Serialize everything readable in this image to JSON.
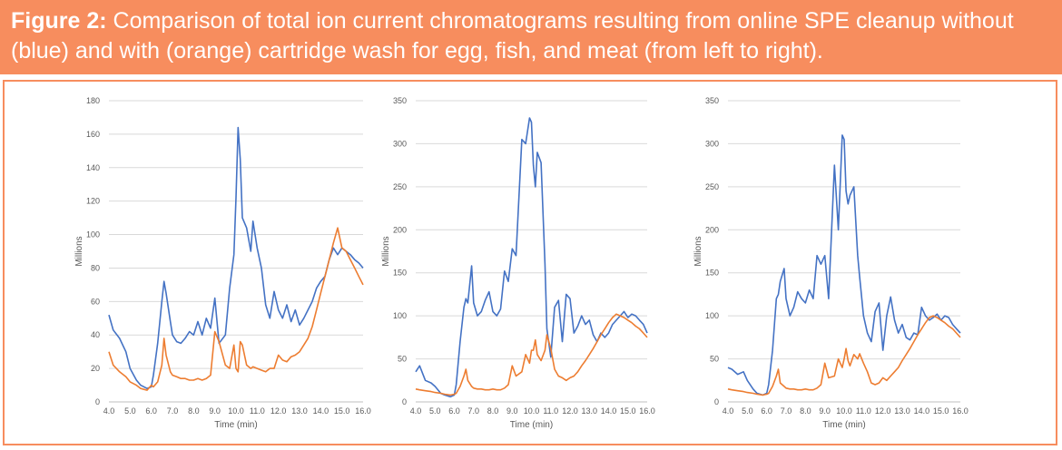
{
  "figure": {
    "label": "Figure 2:",
    "text": " Comparison of total ion current chromatograms resulting from online SPE cleanup without (blue) and with (orange) cartridge wash for egg, fish, and meat (from left to right).",
    "accent_color": "#f78d5e"
  },
  "chart_data": [
    {
      "type": "line",
      "title": "egg",
      "xlabel": "Time (min)",
      "ylabel": "Millions",
      "xlim": [
        4.0,
        16.0
      ],
      "ylim": [
        0,
        180
      ],
      "xticks": [
        "4.0",
        "5.0",
        "6.0",
        "7.0",
        "8.0",
        "9.0",
        "10.0",
        "11.0",
        "12.0",
        "13.0",
        "14.0",
        "15.0",
        "16.0"
      ],
      "yticks": [
        0,
        20,
        40,
        60,
        80,
        100,
        120,
        140,
        160,
        180
      ],
      "series": [
        {
          "name": "without cartridge wash",
          "color": "#4472c4",
          "x": [
            4.0,
            4.2,
            4.5,
            4.8,
            5.0,
            5.3,
            5.5,
            5.8,
            6.0,
            6.1,
            6.3,
            6.5,
            6.6,
            6.7,
            6.9,
            7.0,
            7.2,
            7.4,
            7.6,
            7.8,
            8.0,
            8.2,
            8.4,
            8.6,
            8.8,
            9.0,
            9.2,
            9.5,
            9.7,
            9.9,
            10.0,
            10.1,
            10.2,
            10.3,
            10.5,
            10.7,
            10.8,
            11.0,
            11.2,
            11.4,
            11.6,
            11.8,
            12.0,
            12.2,
            12.4,
            12.6,
            12.8,
            13.0,
            13.2,
            13.4,
            13.6,
            13.8,
            14.0,
            14.2,
            14.4,
            14.6,
            14.8,
            15.0,
            15.2,
            15.4,
            15.6,
            15.8,
            16.0
          ],
          "y": [
            52,
            43,
            38,
            30,
            20,
            13,
            10,
            8,
            9,
            16,
            35,
            60,
            72,
            65,
            48,
            40,
            36,
            35,
            38,
            42,
            40,
            48,
            40,
            50,
            44,
            62,
            35,
            40,
            68,
            88,
            122,
            164,
            145,
            110,
            104,
            90,
            108,
            92,
            80,
            58,
            50,
            66,
            55,
            50,
            58,
            48,
            55,
            46,
            50,
            55,
            60,
            68,
            72,
            75,
            85,
            92,
            88,
            92,
            90,
            88,
            85,
            83,
            80
          ]
        },
        {
          "name": "with cartridge wash",
          "color": "#ed7d31",
          "x": [
            4.0,
            4.2,
            4.5,
            4.8,
            5.0,
            5.3,
            5.5,
            5.8,
            6.0,
            6.1,
            6.3,
            6.5,
            6.6,
            6.7,
            6.9,
            7.0,
            7.2,
            7.4,
            7.6,
            7.8,
            8.0,
            8.2,
            8.4,
            8.6,
            8.8,
            9.0,
            9.2,
            9.5,
            9.7,
            9.9,
            10.0,
            10.1,
            10.2,
            10.3,
            10.5,
            10.7,
            10.8,
            11.0,
            11.2,
            11.4,
            11.6,
            11.8,
            12.0,
            12.2,
            12.4,
            12.6,
            12.8,
            13.0,
            13.2,
            13.4,
            13.6,
            13.8,
            14.0,
            14.2,
            14.4,
            14.6,
            14.8,
            15.0,
            15.2,
            15.4,
            15.6,
            15.8,
            16.0
          ],
          "y": [
            30,
            22,
            18,
            15,
            12,
            10,
            8,
            7,
            10,
            9,
            12,
            22,
            38,
            28,
            18,
            16,
            15,
            14,
            14,
            13,
            13,
            14,
            13,
            14,
            16,
            42,
            36,
            22,
            20,
            34,
            20,
            18,
            36,
            34,
            22,
            20,
            21,
            20,
            19,
            18,
            20,
            20,
            28,
            25,
            24,
            27,
            28,
            30,
            34,
            38,
            45,
            55,
            65,
            75,
            85,
            95,
            104,
            92,
            90,
            85,
            80,
            75,
            70
          ]
        }
      ]
    },
    {
      "type": "line",
      "title": "fish",
      "xlabel": "Time (min)",
      "ylabel": "Millions",
      "xlim": [
        4.0,
        16.0
      ],
      "ylim": [
        0,
        350
      ],
      "xticks": [
        "4.0",
        "5.0",
        "6.0",
        "7.0",
        "8.0",
        "9.0",
        "10.0",
        "11.0",
        "12.0",
        "13.0",
        "14.0",
        "15.0",
        "16.0"
      ],
      "yticks": [
        0,
        50,
        100,
        150,
        200,
        250,
        300,
        350
      ],
      "series": [
        {
          "name": "without cartridge wash",
          "color": "#4472c4",
          "x": [
            4.0,
            4.2,
            4.5,
            4.8,
            5.0,
            5.3,
            5.5,
            5.8,
            6.0,
            6.1,
            6.3,
            6.5,
            6.6,
            6.7,
            6.9,
            7.0,
            7.2,
            7.4,
            7.6,
            7.8,
            8.0,
            8.2,
            8.4,
            8.6,
            8.8,
            9.0,
            9.2,
            9.5,
            9.7,
            9.9,
            10.0,
            10.1,
            10.2,
            10.3,
            10.5,
            10.7,
            10.8,
            11.0,
            11.2,
            11.4,
            11.6,
            11.8,
            12.0,
            12.2,
            12.4,
            12.6,
            12.8,
            13.0,
            13.2,
            13.4,
            13.6,
            13.8,
            14.0,
            14.2,
            14.4,
            14.6,
            14.8,
            15.0,
            15.2,
            15.4,
            15.6,
            15.8,
            16.0
          ],
          "y": [
            35,
            42,
            25,
            22,
            18,
            10,
            8,
            6,
            8,
            20,
            70,
            110,
            120,
            115,
            158,
            115,
            100,
            105,
            118,
            128,
            105,
            100,
            108,
            152,
            140,
            178,
            170,
            305,
            300,
            330,
            325,
            275,
            250,
            290,
            278,
            160,
            85,
            52,
            110,
            118,
            70,
            125,
            120,
            80,
            88,
            100,
            90,
            95,
            78,
            70,
            80,
            75,
            80,
            90,
            95,
            100,
            105,
            98,
            102,
            100,
            95,
            90,
            80
          ]
        },
        {
          "name": "with cartridge wash",
          "color": "#ed7d31",
          "x": [
            4.0,
            4.2,
            4.5,
            4.8,
            5.0,
            5.3,
            5.5,
            5.8,
            6.0,
            6.1,
            6.3,
            6.5,
            6.6,
            6.7,
            6.9,
            7.0,
            7.2,
            7.4,
            7.6,
            7.8,
            8.0,
            8.2,
            8.4,
            8.6,
            8.8,
            9.0,
            9.2,
            9.5,
            9.7,
            9.9,
            10.0,
            10.1,
            10.2,
            10.3,
            10.5,
            10.7,
            10.8,
            11.0,
            11.2,
            11.4,
            11.6,
            11.8,
            12.0,
            12.2,
            12.4,
            12.6,
            12.8,
            13.0,
            13.2,
            13.4,
            13.6,
            13.8,
            14.0,
            14.2,
            14.4,
            14.6,
            14.8,
            15.0,
            15.2,
            15.4,
            15.6,
            15.8,
            16.0
          ],
          "y": [
            15,
            14,
            13,
            12,
            11,
            10,
            9,
            8,
            9,
            10,
            18,
            30,
            38,
            25,
            18,
            16,
            15,
            15,
            14,
            14,
            15,
            14,
            14,
            16,
            20,
            42,
            30,
            35,
            55,
            45,
            60,
            60,
            72,
            55,
            48,
            60,
            78,
            62,
            38,
            30,
            28,
            25,
            28,
            30,
            35,
            42,
            48,
            55,
            62,
            70,
            78,
            85,
            92,
            98,
            102,
            100,
            98,
            95,
            92,
            88,
            85,
            80,
            75
          ]
        }
      ]
    },
    {
      "type": "line",
      "title": "meat",
      "xlabel": "Time (min)",
      "ylabel": "Millions",
      "xlim": [
        4.0,
        16.0
      ],
      "ylim": [
        0,
        350
      ],
      "xticks": [
        "4.0",
        "5.0",
        "6.0",
        "7.0",
        "8.0",
        "9.0",
        "10.0",
        "11.0",
        "12.0",
        "13.0",
        "14.0",
        "15.0",
        "16.0"
      ],
      "yticks": [
        0,
        50,
        100,
        150,
        200,
        250,
        300,
        350
      ],
      "series": [
        {
          "name": "without cartridge wash",
          "color": "#4472c4",
          "x": [
            4.0,
            4.2,
            4.5,
            4.8,
            5.0,
            5.3,
            5.5,
            5.8,
            6.0,
            6.1,
            6.3,
            6.5,
            6.6,
            6.7,
            6.9,
            7.0,
            7.2,
            7.4,
            7.6,
            7.8,
            8.0,
            8.2,
            8.4,
            8.6,
            8.8,
            9.0,
            9.2,
            9.5,
            9.7,
            9.9,
            10.0,
            10.1,
            10.2,
            10.3,
            10.5,
            10.7,
            10.8,
            11.0,
            11.2,
            11.4,
            11.6,
            11.8,
            12.0,
            12.2,
            12.4,
            12.6,
            12.8,
            13.0,
            13.2,
            13.4,
            13.6,
            13.8,
            14.0,
            14.2,
            14.4,
            14.6,
            14.8,
            15.0,
            15.2,
            15.4,
            15.6,
            15.8,
            16.0
          ],
          "y": [
            40,
            38,
            32,
            35,
            25,
            15,
            10,
            8,
            10,
            20,
            60,
            120,
            125,
            140,
            155,
            120,
            100,
            110,
            128,
            120,
            115,
            130,
            120,
            170,
            160,
            170,
            120,
            275,
            200,
            310,
            305,
            245,
            230,
            240,
            250,
            170,
            145,
            100,
            80,
            70,
            105,
            115,
            60,
            100,
            122,
            95,
            80,
            90,
            75,
            72,
            80,
            78,
            110,
            100,
            95,
            98,
            102,
            95,
            100,
            98,
            90,
            85,
            80
          ]
        },
        {
          "name": "with cartridge wash",
          "color": "#ed7d31",
          "x": [
            4.0,
            4.2,
            4.5,
            4.8,
            5.0,
            5.3,
            5.5,
            5.8,
            6.0,
            6.1,
            6.3,
            6.5,
            6.6,
            6.7,
            6.9,
            7.0,
            7.2,
            7.4,
            7.6,
            7.8,
            8.0,
            8.2,
            8.4,
            8.6,
            8.8,
            9.0,
            9.2,
            9.5,
            9.7,
            9.9,
            10.0,
            10.1,
            10.2,
            10.3,
            10.5,
            10.7,
            10.8,
            11.0,
            11.2,
            11.4,
            11.6,
            11.8,
            12.0,
            12.2,
            12.4,
            12.6,
            12.8,
            13.0,
            13.2,
            13.4,
            13.6,
            13.8,
            14.0,
            14.2,
            14.4,
            14.6,
            14.8,
            15.0,
            15.2,
            15.4,
            15.6,
            15.8,
            16.0
          ],
          "y": [
            15,
            14,
            13,
            12,
            11,
            10,
            9,
            8,
            9,
            10,
            18,
            30,
            38,
            22,
            18,
            16,
            15,
            15,
            14,
            14,
            15,
            14,
            14,
            16,
            20,
            45,
            28,
            30,
            50,
            40,
            50,
            62,
            48,
            42,
            55,
            50,
            56,
            45,
            35,
            22,
            20,
            22,
            28,
            25,
            30,
            35,
            40,
            48,
            55,
            62,
            70,
            78,
            85,
            92,
            98,
            100,
            98,
            95,
            92,
            88,
            85,
            80,
            75
          ]
        }
      ]
    }
  ]
}
